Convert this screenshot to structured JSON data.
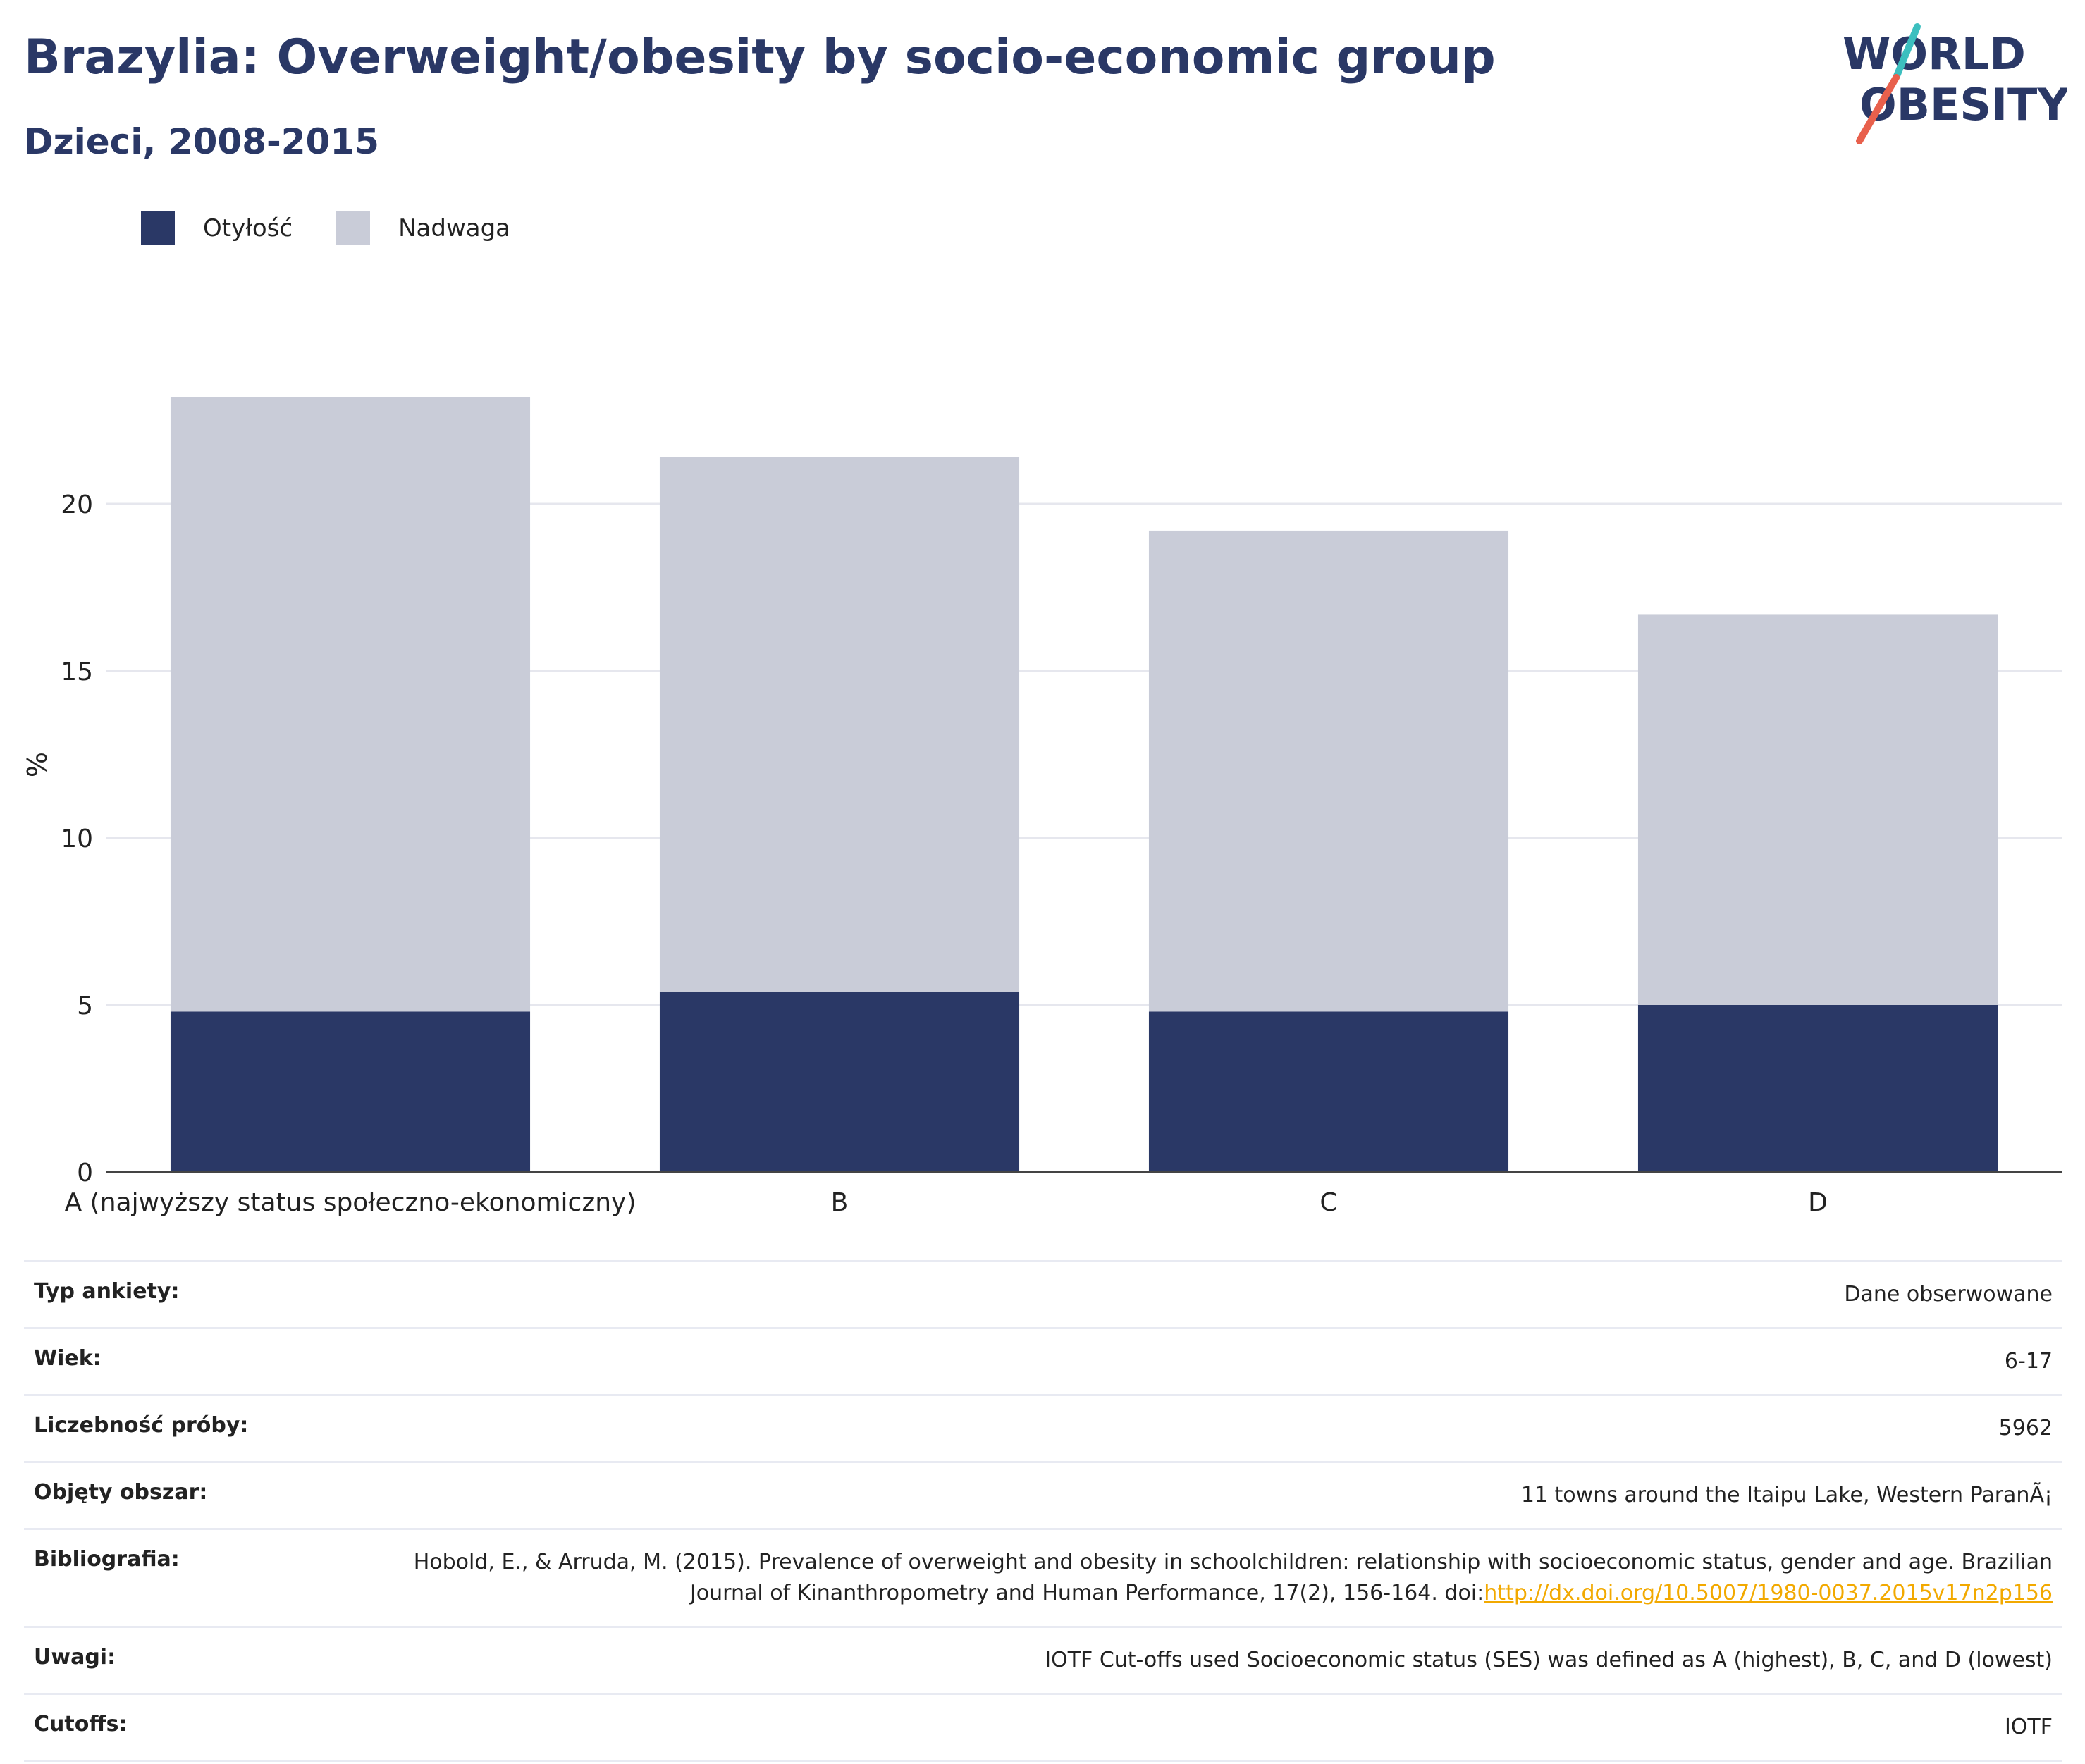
{
  "header": {
    "title": "Brazylia: Overweight/obesity by socio-economic group",
    "subtitle": "Dzieci, 2008-2015"
  },
  "logo": {
    "line1": "WORLD",
    "line2": "OBESITY",
    "icon": "world-obesity-logo",
    "colors": {
      "text": "#2a3866",
      "slash_top": "#3cbfbf",
      "slash_bottom": "#e8604c"
    }
  },
  "colors": {
    "obesity": "#2a3866",
    "overweight": "#c9ccd8",
    "gridline": "#e6e7ee",
    "axis": "#444444",
    "link": "#f2a900"
  },
  "chart_data": {
    "type": "bar",
    "stacked": true,
    "categories": [
      "A (najwyższy status społeczno-ekonomiczny)",
      "B",
      "C",
      "D"
    ],
    "series": [
      {
        "name": "Otyłość",
        "values": [
          4.8,
          5.4,
          4.8,
          5.0
        ]
      },
      {
        "name": "Nadwaga",
        "values": [
          18.4,
          16.0,
          14.4,
          11.7
        ]
      }
    ],
    "ylabel": "%",
    "ylim": [
      0,
      24
    ],
    "yticks": [
      0,
      5,
      10,
      15,
      20
    ],
    "grid": true,
    "legend": "top-left"
  },
  "info": {
    "rows": [
      {
        "key": "Typ ankiety:",
        "value": "Dane obserwowane"
      },
      {
        "key": "Wiek:",
        "value": "6-17"
      },
      {
        "key": "Liczebność próby:",
        "value": "5962"
      },
      {
        "key": "Objęty obszar:",
        "value": "11 towns around the Itaipu Lake, Western ParanÃ¡"
      },
      {
        "key": "Bibliografia:",
        "value": "Hobold, E., & Arruda, M. (2015). Prevalence of overweight and obesity in schoolchildren: relationship with socioeconomic status, gender and age. Brazilian Journal of Kinanthropometry and Human Performance, 17(2), 156-164. doi:",
        "link": "http://dx.doi.org/10.5007/1980-0037.2015v17n2p156"
      },
      {
        "key": "Uwagi:",
        "value": "IOTF Cut-offs used Socioeconomic status (SES) was defined as A (highest), B, C, and D (lowest)"
      },
      {
        "key": "Cutoffs:",
        "value": "IOTF"
      }
    ]
  }
}
